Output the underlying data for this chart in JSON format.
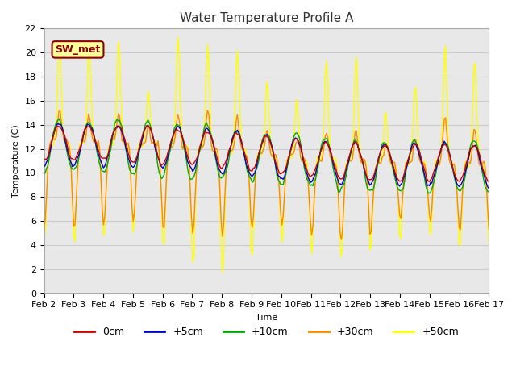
{
  "title": "Water Temperature Profile A",
  "xlabel": "Time",
  "ylabel": "Temperature (C)",
  "ylim": [
    0,
    22
  ],
  "yticks": [
    0,
    2,
    4,
    6,
    8,
    10,
    12,
    14,
    16,
    18,
    20,
    22
  ],
  "date_labels": [
    "Feb 2",
    "Feb 3",
    "Feb 4",
    "Feb 5",
    "Feb 6",
    "Feb 7",
    "Feb 8",
    "Feb 9",
    "Feb 10",
    "Feb 11",
    "Feb 12",
    "Feb 13",
    "Feb 14",
    "Feb 15",
    "Feb 16",
    "Feb 17"
  ],
  "series_colors": [
    "#cc0000",
    "#0000cc",
    "#00aa00",
    "#ff8800",
    "#ffff00"
  ],
  "series_labels": [
    "0cm",
    "+5cm",
    "+10cm",
    "+30cm",
    "+50cm"
  ],
  "annotation_text": "SW_met",
  "annotation_color": "#8b0000",
  "annotation_bg": "#ffff99",
  "linewidth": 1.0,
  "title_fontsize": 11,
  "axis_fontsize": 8,
  "legend_fontsize": 9
}
